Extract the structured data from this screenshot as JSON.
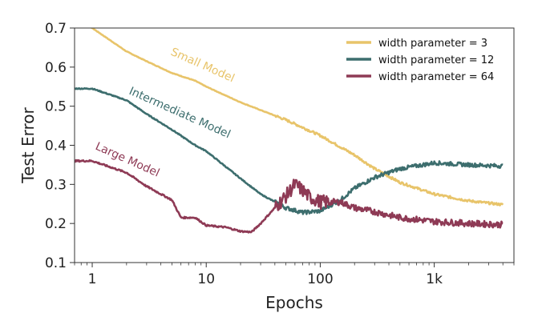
{
  "chart_data": {
    "type": "line",
    "title": "",
    "xlabel": "Epochs",
    "ylabel": "Test Error",
    "xscale": "log",
    "xlim": [
      0.7,
      5000
    ],
    "ylim": [
      0.1,
      0.7
    ],
    "xticks": [
      {
        "value": 1,
        "label": "1"
      },
      {
        "value": 10,
        "label": "10"
      },
      {
        "value": 100,
        "label": "100"
      },
      {
        "value": 1000,
        "label": "1k"
      }
    ],
    "yticks": [
      {
        "value": 0.1,
        "label": "0.1"
      },
      {
        "value": 0.2,
        "label": "0.2"
      },
      {
        "value": 0.3,
        "label": "0.3"
      },
      {
        "value": 0.4,
        "label": "0.4"
      },
      {
        "value": 0.5,
        "label": "0.5"
      },
      {
        "value": 0.6,
        "label": "0.6"
      },
      {
        "value": 0.7,
        "label": "0.7"
      }
    ],
    "grid": false,
    "legend": "top-right",
    "series": [
      {
        "name": "width parameter = 3",
        "annotation": "Small Model",
        "color": "#e8c46a",
        "points": [
          [
            0.7,
            0.73
          ],
          [
            1,
            0.7
          ],
          [
            2,
            0.64
          ],
          [
            3,
            0.615
          ],
          [
            5,
            0.585
          ],
          [
            8,
            0.565
          ],
          [
            10,
            0.55
          ],
          [
            20,
            0.51
          ],
          [
            30,
            0.49
          ],
          [
            50,
            0.465
          ],
          [
            100,
            0.425
          ],
          [
            200,
            0.375
          ],
          [
            300,
            0.34
          ],
          [
            500,
            0.305
          ],
          [
            1000,
            0.275
          ],
          [
            2000,
            0.258
          ],
          [
            4000,
            0.248
          ]
        ]
      },
      {
        "name": "width parameter = 12",
        "annotation": "Intermediate Model",
        "color": "#3d6e6e",
        "points": [
          [
            0.7,
            0.545
          ],
          [
            1,
            0.545
          ],
          [
            2,
            0.515
          ],
          [
            3,
            0.48
          ],
          [
            5,
            0.44
          ],
          [
            8,
            0.4
          ],
          [
            10,
            0.385
          ],
          [
            20,
            0.315
          ],
          [
            30,
            0.275
          ],
          [
            50,
            0.24
          ],
          [
            70,
            0.228
          ],
          [
            100,
            0.232
          ],
          [
            150,
            0.26
          ],
          [
            200,
            0.29
          ],
          [
            300,
            0.318
          ],
          [
            500,
            0.34
          ],
          [
            1000,
            0.355
          ],
          [
            2000,
            0.35
          ],
          [
            4000,
            0.347
          ]
        ]
      },
      {
        "name": "width parameter = 64",
        "annotation": "Large Model",
        "color": "#8e3a55",
        "points": [
          [
            0.7,
            0.36
          ],
          [
            1,
            0.36
          ],
          [
            2,
            0.33
          ],
          [
            3,
            0.295
          ],
          [
            5,
            0.26
          ],
          [
            6,
            0.215
          ],
          [
            8,
            0.215
          ],
          [
            10,
            0.195
          ],
          [
            15,
            0.19
          ],
          [
            20,
            0.18
          ],
          [
            25,
            0.178
          ],
          [
            30,
            0.2
          ],
          [
            40,
            0.24
          ],
          [
            50,
            0.27
          ],
          [
            60,
            0.3
          ],
          [
            70,
            0.285
          ],
          [
            80,
            0.268
          ],
          [
            100,
            0.255
          ],
          [
            150,
            0.255
          ],
          [
            200,
            0.24
          ],
          [
            300,
            0.23
          ],
          [
            500,
            0.215
          ],
          [
            1000,
            0.205
          ],
          [
            2000,
            0.2
          ],
          [
            4000,
            0.197
          ]
        ]
      }
    ]
  }
}
